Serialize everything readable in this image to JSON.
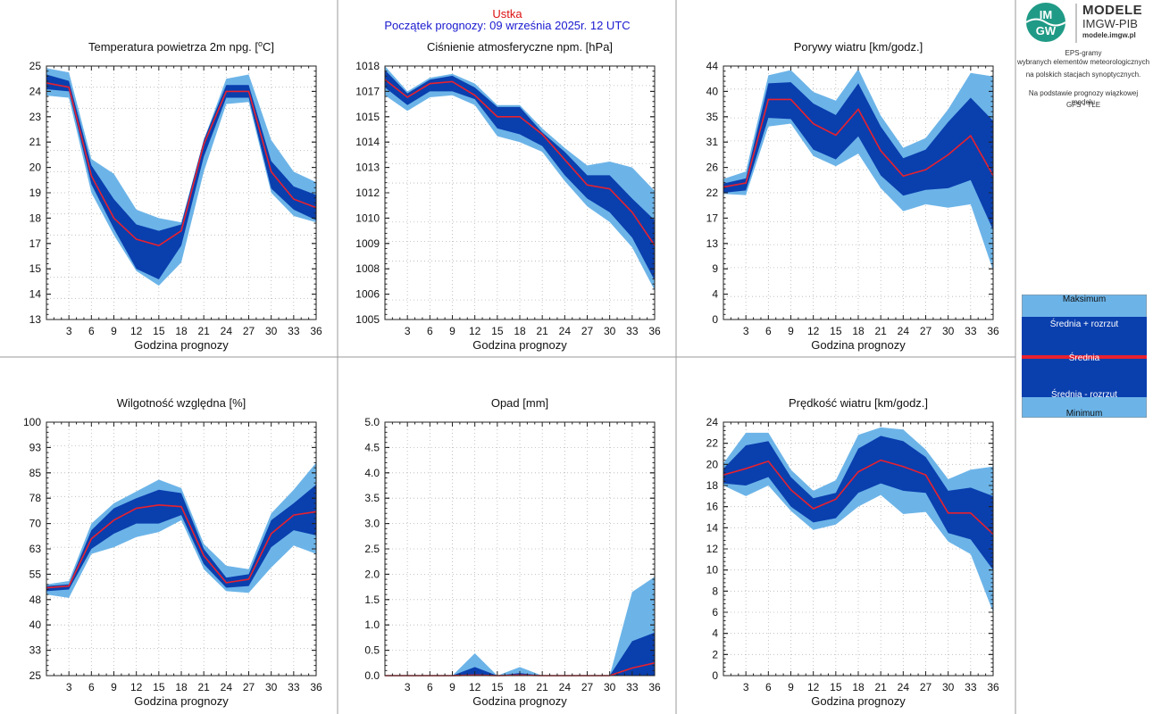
{
  "header": {
    "city": "Ustka",
    "forecast_start": "Początek prognozy: 09 września 2025r. 12 UTC"
  },
  "logo": {
    "mark_top": "IM",
    "mark_bottom": "GW",
    "title": "MODELE",
    "subtitle": "IMGW-PIB",
    "url": "modele.imgw.pl"
  },
  "info": {
    "line1": "EPS-gramy",
    "line2": "wybranych elementów meteorologicznych",
    "line3": "na polskich stacjach  synoptycznych.",
    "line4": "Na podstawie prognozy wiązkowej modelu",
    "line5": "GFS - TLE"
  },
  "legend": {
    "max": "Maksimum",
    "mean_plus": "Średnia + rozrzut",
    "mean": "Średnia",
    "mean_minus": "Średnia - rozrzut",
    "min": "Minimum"
  },
  "colors": {
    "minmax_band": "#6cb4e8",
    "spread_band": "#0a3fae",
    "mean_line": "#e8212e",
    "legend_mid": "#1a3fa0"
  },
  "chart_data": [
    {
      "type": "area",
      "title": "Temperatura powietrza 2m npg. [oC]",
      "xlabel": "Godzina prognozy",
      "ylabel": "",
      "x": [
        0,
        3,
        6,
        9,
        12,
        15,
        18,
        21,
        24,
        27,
        30,
        33,
        36
      ],
      "xticks": [
        3,
        6,
        9,
        12,
        15,
        18,
        21,
        24,
        27,
        30,
        33,
        36
      ],
      "yticks": [
        13,
        14,
        15,
        17,
        18,
        19,
        20,
        21,
        23,
        24,
        25
      ],
      "ylim": [
        13,
        25
      ],
      "series": [
        {
          "name": "Minimum",
          "values": [
            23.6,
            23.5,
            19.0,
            17.0,
            15.3,
            14.6,
            15.7,
            20.0,
            23.2,
            23.3,
            19.0,
            17.9,
            17.6
          ]
        },
        {
          "name": "Średnia - rozrzut",
          "values": [
            23.9,
            23.8,
            19.4,
            17.3,
            15.4,
            14.9,
            16.5,
            20.7,
            23.5,
            23.5,
            19.2,
            18.2,
            17.7
          ]
        },
        {
          "name": "Średnia",
          "values": [
            24.2,
            24.0,
            19.8,
            17.8,
            16.8,
            16.5,
            17.2,
            21.3,
            23.8,
            23.8,
            20.0,
            18.7,
            18.3
          ]
        },
        {
          "name": "Średnia + rozrzut",
          "values": [
            24.6,
            24.3,
            20.3,
            18.7,
            17.5,
            17.2,
            17.5,
            21.5,
            24.1,
            24.1,
            20.5,
            19.3,
            18.9
          ]
        },
        {
          "name": "Maksimum",
          "values": [
            24.9,
            24.7,
            20.6,
            19.9,
            18.2,
            17.8,
            17.6,
            21.5,
            24.4,
            24.6,
            21.5,
            20.0,
            19.5
          ]
        }
      ]
    },
    {
      "type": "area",
      "title": "Ciśnienie atmosferyczne npm. [hPa]",
      "xlabel": "Godzina prognozy",
      "ylabel": "",
      "x": [
        0,
        3,
        6,
        9,
        12,
        15,
        18,
        21,
        24,
        27,
        30,
        33,
        36
      ],
      "xticks": [
        3,
        6,
        9,
        12,
        15,
        18,
        21,
        24,
        27,
        30,
        33,
        36
      ],
      "yticks": [
        1005,
        1006,
        1008,
        1009,
        1010,
        1012,
        1013,
        1014,
        1015,
        1017,
        1018
      ],
      "ylim": [
        1005,
        1018
      ],
      "series": [
        {
          "name": "Minimum",
          "values": [
            1016.5,
            1015.7,
            1016.4,
            1016.5,
            1016.0,
            1014.4,
            1014.1,
            1013.6,
            1012.1,
            1010.8,
            1010.0,
            1008.7,
            1006.5
          ]
        },
        {
          "name": "Średnia - rozrzut",
          "values": [
            1016.9,
            1016.0,
            1016.7,
            1016.7,
            1016.3,
            1014.8,
            1014.5,
            1013.9,
            1012.4,
            1011.2,
            1010.5,
            1009.2,
            1007.0
          ]
        },
        {
          "name": "Średnia",
          "values": [
            1017.3,
            1016.4,
            1017.1,
            1017.2,
            1016.5,
            1015.4,
            1015.4,
            1014.5,
            1013.2,
            1011.9,
            1011.7,
            1010.5,
            1008.8
          ]
        },
        {
          "name": "Średnia + rozrzut",
          "values": [
            1017.8,
            1016.6,
            1017.3,
            1017.5,
            1016.9,
            1015.9,
            1015.9,
            1014.6,
            1013.6,
            1012.4,
            1012.4,
            1011.2,
            1010.1
          ]
        },
        {
          "name": "Maksimum",
          "values": [
            1018.0,
            1016.7,
            1017.4,
            1017.6,
            1017.1,
            1016.0,
            1016.0,
            1014.8,
            1013.8,
            1012.9,
            1013.1,
            1012.8,
            1011.6
          ]
        }
      ]
    },
    {
      "type": "area",
      "title": "Porywy wiatru [km/godz.]",
      "xlabel": "Godzina prognozy",
      "ylabel": "",
      "x": [
        0,
        3,
        6,
        9,
        12,
        15,
        18,
        21,
        24,
        27,
        30,
        33,
        36
      ],
      "xticks": [
        3,
        6,
        9,
        12,
        15,
        18,
        21,
        24,
        27,
        30,
        33,
        36
      ],
      "yticks": [
        0,
        4,
        9,
        13,
        17,
        22,
        26,
        31,
        35,
        40,
        44
      ],
      "ylim": [
        0,
        44
      ],
      "series": [
        {
          "name": "Minimum",
          "values": [
            21.8,
            21.6,
            33.5,
            34.0,
            28.4,
            26.6,
            28.8,
            22.8,
            18.8,
            20.0,
            19.4,
            20.0,
            8.5
          ]
        },
        {
          "name": "Średnia - rozrzut",
          "values": [
            22.0,
            22.4,
            35.0,
            34.8,
            29.5,
            27.8,
            31.8,
            25.0,
            21.5,
            22.5,
            22.8,
            24.2,
            15.5
          ]
        },
        {
          "name": "Średnia",
          "values": [
            23.0,
            23.7,
            38.2,
            38.2,
            34.0,
            32.0,
            36.5,
            29.3,
            24.9,
            26.0,
            28.6,
            31.9,
            25.0
          ]
        },
        {
          "name": "Średnia + rozrzut",
          "values": [
            23.6,
            24.5,
            41.0,
            41.2,
            37.5,
            35.5,
            41.0,
            33.5,
            28.0,
            29.5,
            34.3,
            38.5,
            34.5
          ]
        },
        {
          "name": "Maksimum",
          "values": [
            24.4,
            25.7,
            42.4,
            43.3,
            39.5,
            38.0,
            43.5,
            35.4,
            29.8,
            31.5,
            36.5,
            42.8,
            42.2
          ]
        }
      ]
    },
    {
      "type": "area",
      "title": "Wilgotność względna [%]",
      "xlabel": "Godzina prognozy",
      "ylabel": "",
      "x": [
        0,
        3,
        6,
        9,
        12,
        15,
        18,
        21,
        24,
        27,
        30,
        33,
        36
      ],
      "xticks": [
        3,
        6,
        9,
        12,
        15,
        18,
        21,
        24,
        27,
        30,
        33,
        36
      ],
      "yticks": [
        25,
        33,
        40,
        48,
        55,
        63,
        70,
        78,
        85,
        93,
        100
      ],
      "ylim": [
        25,
        100
      ],
      "series": [
        {
          "name": "Minimum",
          "values": [
            49.0,
            48.0,
            61.0,
            63.0,
            66.0,
            67.5,
            71.0,
            56.5,
            50.0,
            49.5,
            57.0,
            63.5,
            61.0
          ]
        },
        {
          "name": "Średnia - rozrzut",
          "values": [
            50.0,
            50.5,
            62.5,
            67.0,
            70.0,
            70.0,
            72.5,
            58.0,
            51.0,
            51.5,
            63.0,
            68.0,
            66.5
          ]
        },
        {
          "name": "Średnia",
          "values": [
            51.0,
            51.5,
            65.5,
            71.0,
            74.5,
            75.5,
            75.0,
            60.5,
            52.5,
            53.5,
            67.0,
            72.5,
            73.5
          ]
        },
        {
          "name": "Średnia + rozrzut",
          "values": [
            51.5,
            52.0,
            68.0,
            74.5,
            77.5,
            80.0,
            79.0,
            62.5,
            54.0,
            55.0,
            71.0,
            76.0,
            81.5
          ]
        },
        {
          "name": "Maksimum",
          "values": [
            52.0,
            53.0,
            70.0,
            76.0,
            79.5,
            83.0,
            80.5,
            64.0,
            57.5,
            56.5,
            73.0,
            80.0,
            88.0
          ]
        }
      ]
    },
    {
      "type": "area",
      "title": "Opad [mm]",
      "xlabel": "Godzina prognozy",
      "ylabel": "",
      "x": [
        0,
        3,
        6,
        9,
        12,
        15,
        18,
        21,
        24,
        27,
        30,
        33,
        36
      ],
      "xticks": [
        3,
        6,
        9,
        12,
        15,
        18,
        21,
        24,
        27,
        30,
        33,
        36
      ],
      "yticks": [
        0.0,
        0.5,
        1.0,
        1.5,
        2.0,
        2.5,
        3.0,
        3.5,
        4.0,
        4.5,
        5.0
      ],
      "ylim": [
        0,
        5
      ],
      "series": [
        {
          "name": "Minimum",
          "values": [
            0,
            0,
            0,
            0,
            0,
            0,
            0,
            0,
            0,
            0,
            0,
            0,
            0
          ]
        },
        {
          "name": "Średnia - rozrzut",
          "values": [
            0,
            0,
            0,
            0,
            0,
            0,
            0,
            0,
            0,
            0,
            0,
            0,
            0
          ]
        },
        {
          "name": "Średnia",
          "values": [
            0,
            0,
            0,
            0,
            0.01,
            0,
            0.01,
            0,
            0,
            0,
            0,
            0.15,
            0.25
          ]
        },
        {
          "name": "Średnia + rozrzut",
          "values": [
            0,
            0,
            0,
            0,
            0.17,
            0,
            0.05,
            0,
            0,
            0,
            0,
            0.68,
            0.85
          ]
        },
        {
          "name": "Maksimum",
          "values": [
            0,
            0,
            0,
            0,
            0.44,
            0,
            0.17,
            0,
            0,
            0,
            0,
            1.65,
            1.95
          ]
        }
      ]
    },
    {
      "type": "area",
      "title": "Prędkość wiatru [km/godz.]",
      "xlabel": "Godzina prognozy",
      "ylabel": "",
      "x": [
        0,
        3,
        6,
        9,
        12,
        15,
        18,
        21,
        24,
        27,
        30,
        33,
        36
      ],
      "xticks": [
        3,
        6,
        9,
        12,
        15,
        18,
        21,
        24,
        27,
        30,
        33,
        36
      ],
      "yticks": [
        0,
        2,
        4,
        6,
        8,
        10,
        12,
        14,
        16,
        18,
        20,
        22,
        24
      ],
      "ylim": [
        0,
        24
      ],
      "series": [
        {
          "name": "Minimum",
          "values": [
            18.0,
            17.0,
            18.0,
            15.6,
            13.8,
            14.3,
            16.0,
            17.1,
            15.3,
            15.5,
            12.7,
            11.5,
            6.0
          ]
        },
        {
          "name": "Średnia - rozrzut",
          "values": [
            18.2,
            18.0,
            18.8,
            16.0,
            14.5,
            14.9,
            17.3,
            18.2,
            17.5,
            17.3,
            13.5,
            12.9,
            10.0
          ]
        },
        {
          "name": "Średnia",
          "values": [
            19.0,
            19.6,
            20.3,
            17.6,
            15.8,
            16.7,
            19.3,
            20.4,
            19.8,
            19.0,
            15.4,
            15.4,
            13.4
          ]
        },
        {
          "name": "Średnia + rozrzut",
          "values": [
            19.6,
            21.8,
            22.2,
            18.8,
            16.8,
            17.3,
            21.5,
            22.7,
            22.2,
            20.7,
            17.5,
            17.8,
            17.0
          ]
        },
        {
          "name": "Maksimum",
          "values": [
            20.1,
            23.0,
            23.0,
            19.5,
            17.5,
            18.5,
            22.8,
            23.5,
            23.3,
            21.4,
            18.6,
            19.5,
            19.8
          ]
        }
      ]
    }
  ]
}
